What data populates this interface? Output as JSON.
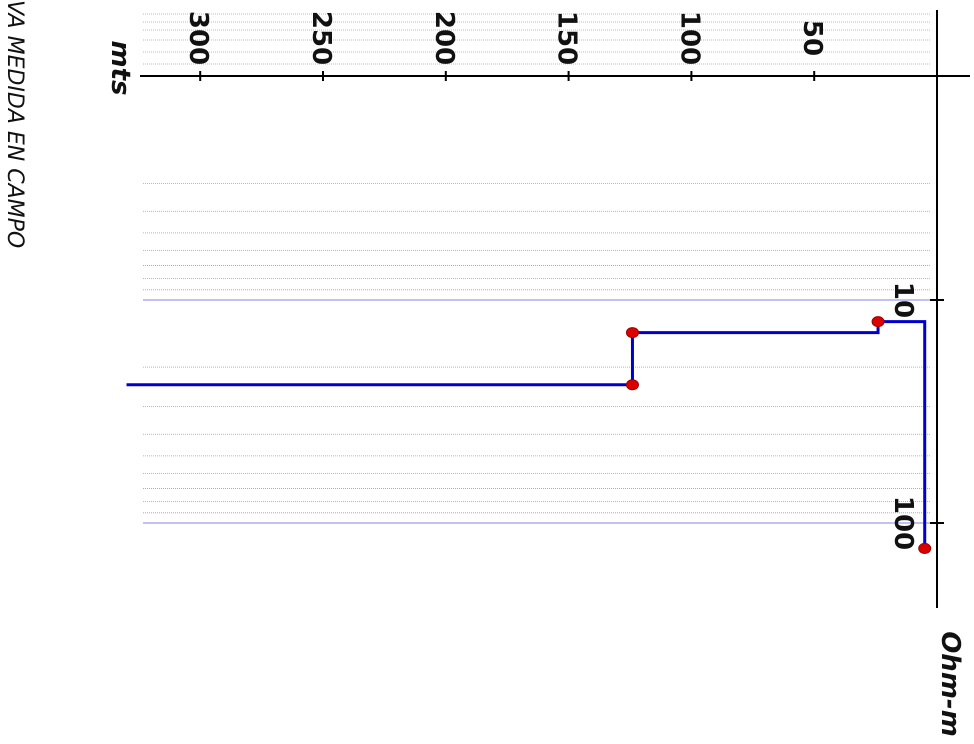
{
  "chart_data": {
    "type": "line",
    "title": "VA MEDIDA EN CAMPO",
    "xlabel": "mts",
    "ylabel": "Ohm-m",
    "x_range": [
      0,
      325
    ],
    "x_ticks": [
      50,
      100,
      150,
      200,
      250,
      300
    ],
    "x_tick_labels": [
      "50",
      "100",
      "150",
      "200",
      "250",
      "300"
    ],
    "y_scale": "log",
    "y_range": [
      3,
      150
    ],
    "y_ticks": [
      10,
      100
    ],
    "y_tick_labels": [
      "10",
      "100"
    ],
    "grid": true,
    "series": [
      {
        "points": [
          {
            "depth": 5,
            "resistivity": 130
          },
          {
            "depth": 5,
            "resistivity": 12.5
          },
          {
            "depth": 24,
            "resistivity": 12.5
          },
          {
            "depth": 24,
            "resistivity": 14
          },
          {
            "depth": 124,
            "resistivity": 14
          },
          {
            "depth": 124,
            "resistivity": 24
          },
          {
            "depth": 330,
            "resistivity": 24
          }
        ],
        "markers": [
          {
            "depth": 5,
            "resistivity": 130
          },
          {
            "depth": 24,
            "resistivity": 12.5
          },
          {
            "depth": 124,
            "resistivity": 14
          },
          {
            "depth": 124,
            "resistivity": 24
          }
        ]
      }
    ],
    "colors": {
      "line": "#0000cc",
      "marker": "#dd0000",
      "grid": "#7777dd",
      "axis": "#000000"
    }
  }
}
